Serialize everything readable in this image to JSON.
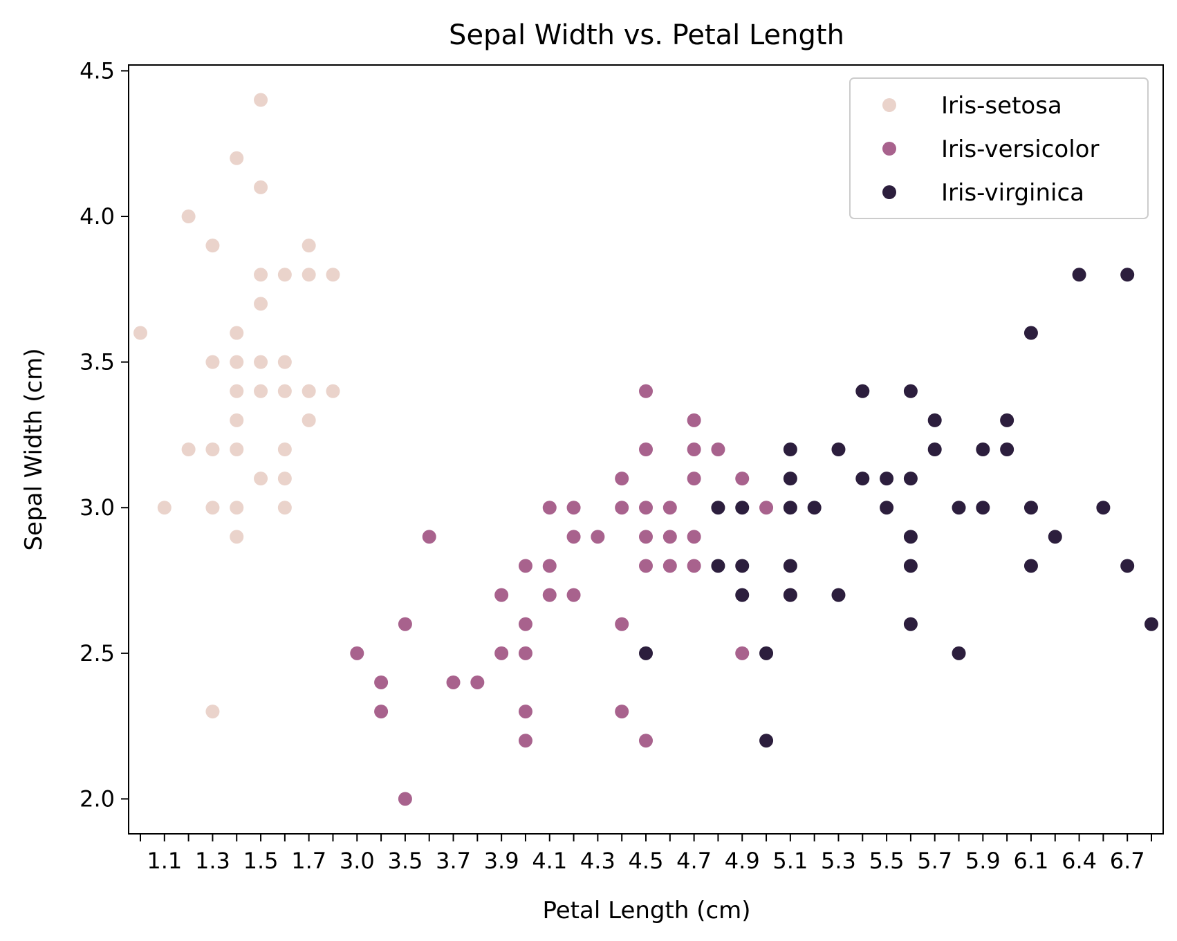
{
  "chart_data": {
    "type": "scatter",
    "title": "Sepal Width vs. Petal Length",
    "xlabel": "Petal Length (cm)",
    "ylabel": "Sepal Width (cm)",
    "ylim": [
      1.88,
      4.52
    ],
    "x_axis_scale": "categorical",
    "grid": false,
    "legend_position": "top-right",
    "x_categories": [
      "1.0",
      "1.1",
      "1.2",
      "1.3",
      "1.4",
      "1.5",
      "1.6",
      "1.7",
      "1.9",
      "3.0",
      "3.3",
      "3.5",
      "3.6",
      "3.7",
      "3.8",
      "3.9",
      "4.0",
      "4.1",
      "4.2",
      "4.3",
      "4.4",
      "4.5",
      "4.6",
      "4.7",
      "4.8",
      "4.9",
      "5.0",
      "5.1",
      "5.2",
      "5.3",
      "5.4",
      "5.5",
      "5.6",
      "5.7",
      "5.8",
      "5.9",
      "6.0",
      "6.1",
      "6.3",
      "6.4",
      "6.6",
      "6.7",
      "6.9"
    ],
    "x_tick_labels": [
      "1.1",
      "1.3",
      "1.5",
      "1.7",
      "3.0",
      "3.5",
      "3.7",
      "3.9",
      "4.1",
      "4.3",
      "4.5",
      "4.7",
      "4.9",
      "5.1",
      "5.3",
      "5.5",
      "5.7",
      "5.9",
      "6.1",
      "6.4",
      "6.7"
    ],
    "y_ticks": [
      "2.0",
      "2.5",
      "3.0",
      "3.5",
      "4.0",
      "4.5"
    ],
    "series": [
      {
        "name": "Iris-setosa",
        "color": "#ead3cb",
        "points": [
          [
            "1.0",
            3.6
          ],
          [
            "1.1",
            3.0
          ],
          [
            "1.2",
            4.0
          ],
          [
            "1.2",
            3.2
          ],
          [
            "1.3",
            3.9
          ],
          [
            "1.3",
            3.5
          ],
          [
            "1.3",
            3.2
          ],
          [
            "1.3",
            3.0
          ],
          [
            "1.3",
            2.3
          ],
          [
            "1.4",
            4.2
          ],
          [
            "1.4",
            3.6
          ],
          [
            "1.4",
            3.5
          ],
          [
            "1.4",
            3.4
          ],
          [
            "1.4",
            3.3
          ],
          [
            "1.4",
            3.2
          ],
          [
            "1.4",
            3.0
          ],
          [
            "1.4",
            2.9
          ],
          [
            "1.5",
            4.4
          ],
          [
            "1.5",
            4.1
          ],
          [
            "1.5",
            3.8
          ],
          [
            "1.5",
            3.7
          ],
          [
            "1.5",
            3.5
          ],
          [
            "1.5",
            3.4
          ],
          [
            "1.5",
            3.1
          ],
          [
            "1.6",
            3.8
          ],
          [
            "1.6",
            3.5
          ],
          [
            "1.6",
            3.4
          ],
          [
            "1.6",
            3.2
          ],
          [
            "1.6",
            3.1
          ],
          [
            "1.6",
            3.0
          ],
          [
            "1.7",
            3.9
          ],
          [
            "1.7",
            3.8
          ],
          [
            "1.7",
            3.4
          ],
          [
            "1.7",
            3.3
          ],
          [
            "1.9",
            3.8
          ],
          [
            "1.9",
            3.4
          ]
        ]
      },
      {
        "name": "Iris-versicolor",
        "color": "#a8628d",
        "points": [
          [
            "3.0",
            2.5
          ],
          [
            "3.3",
            2.4
          ],
          [
            "3.3",
            2.3
          ],
          [
            "3.5",
            2.6
          ],
          [
            "3.5",
            2.0
          ],
          [
            "3.6",
            2.9
          ],
          [
            "3.7",
            2.4
          ],
          [
            "3.8",
            2.4
          ],
          [
            "3.9",
            2.7
          ],
          [
            "3.9",
            2.5
          ],
          [
            "4.0",
            2.8
          ],
          [
            "4.0",
            2.6
          ],
          [
            "4.0",
            2.5
          ],
          [
            "4.0",
            2.3
          ],
          [
            "4.0",
            2.2
          ],
          [
            "4.1",
            3.0
          ],
          [
            "4.1",
            2.8
          ],
          [
            "4.1",
            2.7
          ],
          [
            "4.2",
            3.0
          ],
          [
            "4.2",
            2.9
          ],
          [
            "4.2",
            2.7
          ],
          [
            "4.3",
            2.9
          ],
          [
            "4.4",
            3.1
          ],
          [
            "4.4",
            3.0
          ],
          [
            "4.4",
            2.6
          ],
          [
            "4.4",
            2.3
          ],
          [
            "4.5",
            3.4
          ],
          [
            "4.5",
            3.2
          ],
          [
            "4.5",
            3.0
          ],
          [
            "4.5",
            2.9
          ],
          [
            "4.5",
            2.8
          ],
          [
            "4.5",
            2.2
          ],
          [
            "4.6",
            3.0
          ],
          [
            "4.6",
            2.9
          ],
          [
            "4.6",
            2.8
          ],
          [
            "4.7",
            3.3
          ],
          [
            "4.7",
            3.2
          ],
          [
            "4.7",
            3.1
          ],
          [
            "4.7",
            2.9
          ],
          [
            "4.7",
            2.8
          ],
          [
            "4.8",
            3.2
          ],
          [
            "4.9",
            3.1
          ],
          [
            "4.9",
            2.5
          ],
          [
            "5.0",
            3.0
          ],
          [
            "5.1",
            2.7
          ]
        ]
      },
      {
        "name": "Iris-virginica",
        "color": "#2c1e3d",
        "points": [
          [
            "4.5",
            2.5
          ],
          [
            "4.8",
            3.0
          ],
          [
            "4.8",
            2.8
          ],
          [
            "4.9",
            3.0
          ],
          [
            "4.9",
            2.8
          ],
          [
            "4.9",
            2.7
          ],
          [
            "5.0",
            2.5
          ],
          [
            "5.0",
            2.2
          ],
          [
            "5.1",
            3.2
          ],
          [
            "5.1",
            3.1
          ],
          [
            "5.1",
            3.0
          ],
          [
            "5.1",
            2.8
          ],
          [
            "5.1",
            2.7
          ],
          [
            "5.2",
            3.0
          ],
          [
            "5.3",
            2.7
          ],
          [
            "5.3",
            3.2
          ],
          [
            "5.4",
            3.4
          ],
          [
            "5.4",
            3.1
          ],
          [
            "5.5",
            3.1
          ],
          [
            "5.5",
            3.0
          ],
          [
            "5.6",
            3.4
          ],
          [
            "5.6",
            3.1
          ],
          [
            "5.6",
            2.9
          ],
          [
            "5.6",
            2.8
          ],
          [
            "5.6",
            2.6
          ],
          [
            "5.7",
            3.3
          ],
          [
            "5.7",
            3.2
          ],
          [
            "5.8",
            3.0
          ],
          [
            "5.8",
            2.5
          ],
          [
            "5.9",
            3.2
          ],
          [
            "5.9",
            3.0
          ],
          [
            "6.0",
            3.3
          ],
          [
            "6.0",
            3.2
          ],
          [
            "6.1",
            3.6
          ],
          [
            "6.1",
            3.0
          ],
          [
            "6.1",
            2.8
          ],
          [
            "6.3",
            2.9
          ],
          [
            "6.4",
            3.8
          ],
          [
            "6.6",
            3.0
          ],
          [
            "6.7",
            3.8
          ],
          [
            "6.7",
            2.8
          ],
          [
            "6.9",
            2.6
          ]
        ]
      }
    ]
  }
}
